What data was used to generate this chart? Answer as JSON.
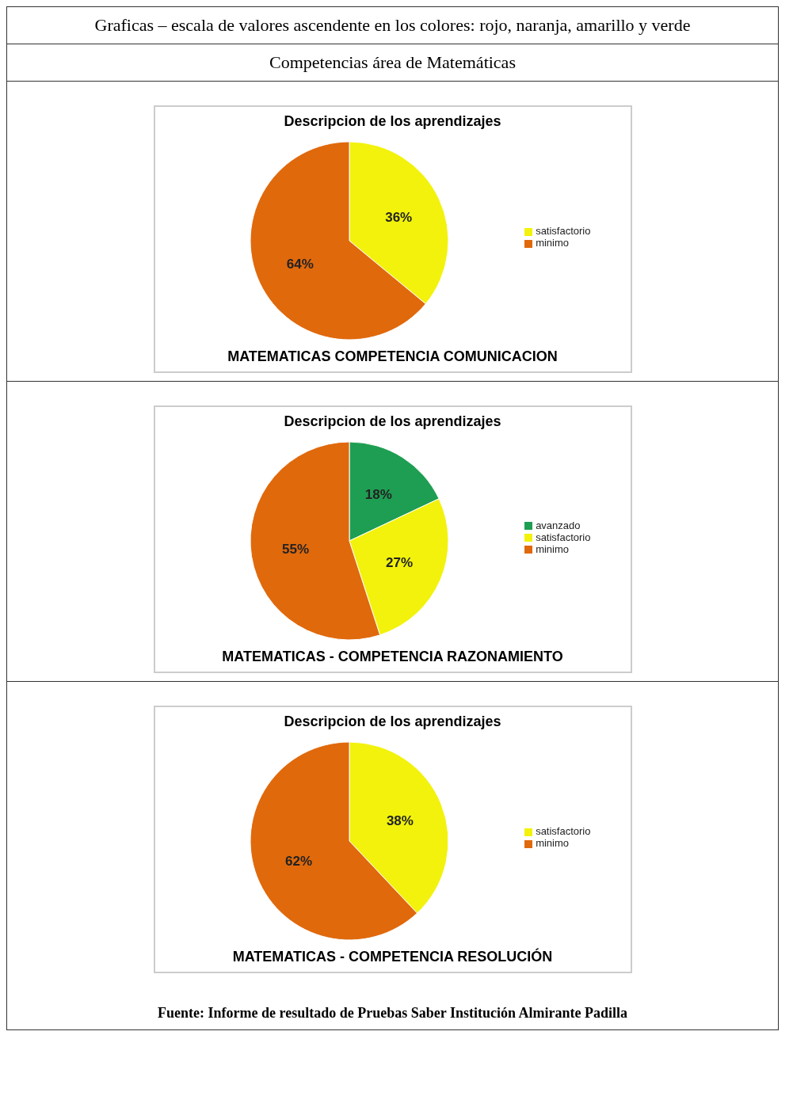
{
  "chart_data": [
    {
      "type": "pie",
      "title": "Descripcion de los aprendizajes",
      "subtitle": "MATEMATICAS  COMPETENCIA COMUNICACION",
      "annotations": [
        "Graficas – escala de valores ascendente en los colores: rojo, naranja, amarillo y verde",
        "Competencias área de Matemáticas"
      ],
      "categories": [
        "satisfactorio",
        "minimo"
      ],
      "values": [
        36,
        64
      ],
      "value_labels": [
        "36%",
        "64%"
      ],
      "colors": [
        "#f2f20c",
        "#e0690c"
      ],
      "legend": "right"
    },
    {
      "type": "pie",
      "title": "Descripcion de los aprendizajes",
      "subtitle": "MATEMATICAS - COMPETENCIA RAZONAMIENTO",
      "categories": [
        "avanzado",
        "satisfactorio",
        "minimo"
      ],
      "values": [
        18,
        27,
        55
      ],
      "value_labels": [
        "18%",
        "27%",
        "55%"
      ],
      "colors": [
        "#1e9e52",
        "#f2f20c",
        "#e0690c"
      ],
      "legend": "right"
    },
    {
      "type": "pie",
      "title": "Descripcion de los aprendizajes",
      "subtitle": "MATEMATICAS - COMPETENCIA  RESOLUCIÓN",
      "annotations": [
        "Fuente: Informe de resultado de Pruebas Saber Institución Almirante Padilla"
      ],
      "categories": [
        "satisfactorio",
        "minimo"
      ],
      "values": [
        38,
        62
      ],
      "value_labels": [
        "38%",
        "62%"
      ],
      "colors": [
        "#f2f20c",
        "#e0690c"
      ],
      "legend": "right"
    }
  ]
}
